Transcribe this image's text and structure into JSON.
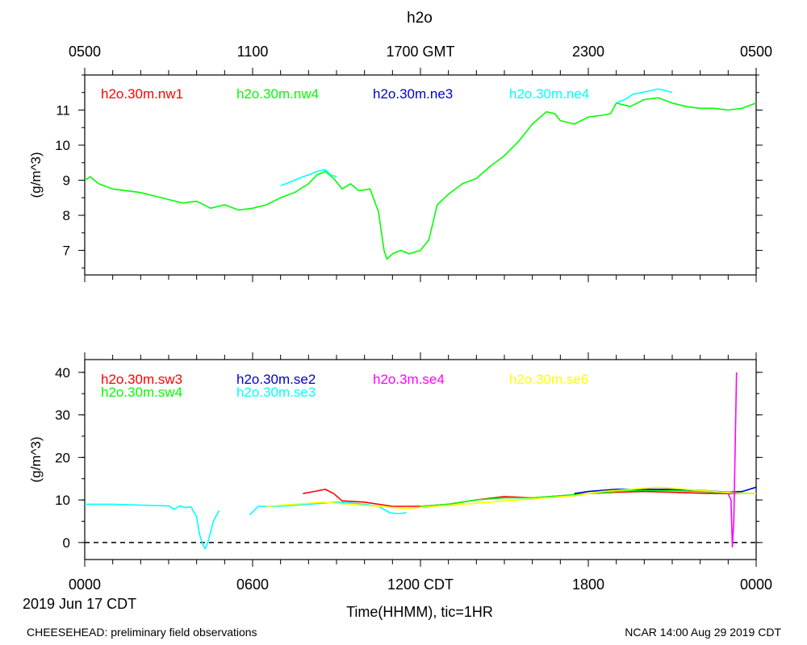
{
  "title": "h2o",
  "top_axis": {
    "ticks": [
      "0500",
      "1100",
      "1700 GMT",
      "2300",
      "0500"
    ]
  },
  "bottom_axis": {
    "ticks": [
      "0000",
      "0600",
      "1200 CDT",
      "1800",
      "0000"
    ],
    "date_label": "2019 Jun 17 CDT",
    "xlabel": "Time(HHMM), tic=1HR"
  },
  "footer": {
    "left": "CHEESEHEAD: preliminary field observations",
    "right": "NCAR 14:00 Aug 29 2019 CDT"
  },
  "colors": {
    "red": "#ff0000",
    "green": "#00ff00",
    "blue": "#0000cc",
    "cyan": "#00ffff",
    "magenta": "#ff00ff",
    "yellow": "#ffff00"
  },
  "chart_data": [
    {
      "type": "line",
      "ylabel": "(g/m^3)",
      "xlim": [
        0,
        24
      ],
      "ylim": [
        6.3,
        12.0
      ],
      "yticks": [
        7,
        8,
        9,
        10,
        11
      ],
      "x_unit": "hours CDT",
      "legend": [
        {
          "name": "h2o.30m.nw1",
          "color": "#ff0000"
        },
        {
          "name": "h2o.30m.nw4",
          "color": "#00ff00"
        },
        {
          "name": "h2o.30m.ne3",
          "color": "#0000cc"
        },
        {
          "name": "h2o.30m.ne4",
          "color": "#00ffff"
        }
      ],
      "series": [
        {
          "name": "h2o.30m.nw4",
          "color": "#00ff00",
          "x": [
            0,
            0.2,
            0.5,
            1,
            1.5,
            2,
            2.5,
            3,
            3.5,
            4,
            4.5,
            5,
            5.5,
            6,
            6.5,
            7,
            7.5,
            8,
            8.3,
            8.6,
            8.9,
            9.2,
            9.5,
            9.8,
            10.2,
            10.5,
            10.7,
            10.8,
            11,
            11.3,
            11.6,
            12,
            12.3,
            12.6,
            13,
            13.5,
            14,
            14.5,
            15,
            15.5,
            16,
            16.5,
            16.8,
            17,
            17.5,
            18,
            18.5,
            18.8,
            19,
            19.5,
            20,
            20.5,
            21,
            21.5,
            22,
            22.5,
            23,
            23.5,
            24
          ],
          "values": [
            9.0,
            9.1,
            8.9,
            8.75,
            8.7,
            8.65,
            8.55,
            8.45,
            8.35,
            8.4,
            8.2,
            8.3,
            8.15,
            8.2,
            8.3,
            8.5,
            8.65,
            8.9,
            9.15,
            9.25,
            9.05,
            8.75,
            8.9,
            8.7,
            8.75,
            8.1,
            7.0,
            6.75,
            6.9,
            7.0,
            6.9,
            7.0,
            7.3,
            8.3,
            8.6,
            8.9,
            9.05,
            9.4,
            9.7,
            10.1,
            10.6,
            10.95,
            10.9,
            10.7,
            10.6,
            10.8,
            10.85,
            10.9,
            11.2,
            11.1,
            11.3,
            11.35,
            11.2,
            11.1,
            11.05,
            11.05,
            11.0,
            11.05,
            11.2
          ]
        },
        {
          "name": "h2o.30m.ne4",
          "color": "#00ffff",
          "x": [
            7.0,
            7.2,
            7.5,
            7.8,
            8.0,
            8.3,
            8.6,
            8.8,
            9.0
          ],
          "values": [
            8.85,
            8.9,
            9.0,
            9.1,
            9.15,
            9.25,
            9.3,
            9.15,
            9.1
          ]
        },
        {
          "name": "h2o.30m.ne4",
          "color": "#00ffff",
          "x": [
            19.0,
            19.3,
            19.6,
            19.9,
            20.2,
            20.5,
            20.8,
            21.0
          ],
          "values": [
            11.2,
            11.3,
            11.45,
            11.5,
            11.55,
            11.6,
            11.55,
            11.5
          ]
        }
      ]
    },
    {
      "type": "line",
      "ylabel": "(g/m^3)",
      "xlim": [
        0,
        24
      ],
      "ylim": [
        -4,
        43
      ],
      "yticks": [
        0,
        10,
        20,
        30,
        40
      ],
      "zero_line": true,
      "x_unit": "hours CDT",
      "legend": [
        {
          "name": "h2o.30m.sw3",
          "color": "#ff0000"
        },
        {
          "name": "h2o.30m.sw4",
          "color": "#00ff00"
        },
        {
          "name": "h2o.30m.se2",
          "color": "#0000cc"
        },
        {
          "name": "h2o.30m.se3",
          "color": "#00ffff"
        },
        {
          "name": "h2o.3m.se4",
          "color": "#ff00ff"
        },
        {
          "name": "h2o.30m.se6",
          "color": "#ffff00"
        }
      ],
      "series": [
        {
          "name": "h2o.30m.se3",
          "color": "#00ffff",
          "x": [
            0,
            1,
            2,
            3,
            3.2,
            3.4,
            3.6,
            3.8,
            4.0,
            4.1,
            4.2,
            4.3,
            4.4,
            4.5,
            4.6,
            4.8
          ],
          "values": [
            9.0,
            9.0,
            8.8,
            8.6,
            7.8,
            8.6,
            8.2,
            8.4,
            6.0,
            2.0,
            0.0,
            -1.5,
            0.0,
            2.5,
            5.0,
            7.5
          ]
        },
        {
          "name": "h2o.30m.se3",
          "color": "#00ffff",
          "x": [
            5.9,
            6.2,
            7,
            8,
            9,
            9.5,
            10,
            10.5,
            10.9,
            11.2,
            11.5
          ],
          "values": [
            6.5,
            8.5,
            8.5,
            9.0,
            9.5,
            9.3,
            9.0,
            8.5,
            7.0,
            6.8,
            7.0
          ]
        },
        {
          "name": "h2o.30m.sw3",
          "color": "#ff0000",
          "x": [
            7.8,
            8.2,
            8.6,
            8.9,
            9.2,
            10,
            11,
            12,
            13,
            14,
            15,
            16,
            17,
            18,
            19,
            20,
            21,
            22,
            23,
            24
          ],
          "values": [
            11.5,
            12.0,
            12.5,
            11.5,
            9.8,
            9.5,
            8.5,
            8.5,
            9.0,
            10.0,
            10.8,
            10.5,
            11.0,
            11.5,
            11.8,
            12.0,
            11.8,
            11.6,
            11.5,
            11.5
          ]
        },
        {
          "name": "h2o.30m.sw4",
          "color": "#00ff00",
          "x": [
            12,
            13,
            14,
            15,
            16,
            17,
            18,
            19,
            20,
            21,
            22,
            23,
            24
          ],
          "values": [
            8.5,
            9.0,
            10.0,
            10.5,
            10.5,
            11.0,
            11.5,
            12.0,
            12.3,
            12.2,
            12.0,
            11.7,
            11.5
          ]
        },
        {
          "name": "h2o.30m.se2",
          "color": "#0000cc",
          "x": [
            17.5,
            18,
            19,
            20,
            21,
            22,
            23,
            23.5,
            24
          ],
          "values": [
            11.5,
            12.0,
            12.5,
            12.5,
            12.5,
            12.3,
            11.8,
            12.0,
            13.0
          ]
        },
        {
          "name": "h2o.30m.se6",
          "color": "#ffff00",
          "x": [
            6.5,
            7.5,
            8.5,
            9.5,
            10.5,
            11.5,
            12.5,
            13.5,
            14.5,
            15.5,
            16.5,
            17.5,
            18.5,
            19.5,
            20.5,
            21.5,
            22.5,
            23.5,
            24
          ],
          "values": [
            8.5,
            9.0,
            9.5,
            9.0,
            8.5,
            8.0,
            8.5,
            9.0,
            9.5,
            10.0,
            10.5,
            11.0,
            12.0,
            12.5,
            13.0,
            12.5,
            12.0,
            11.5,
            11.5
          ]
        },
        {
          "name": "h2o.3m.se4",
          "color": "#ff00ff",
          "x": [
            23.0,
            23.1,
            23.15,
            23.2,
            23.3
          ],
          "values": [
            11.5,
            10.0,
            -1.0,
            5.0,
            40.0
          ]
        }
      ]
    }
  ]
}
